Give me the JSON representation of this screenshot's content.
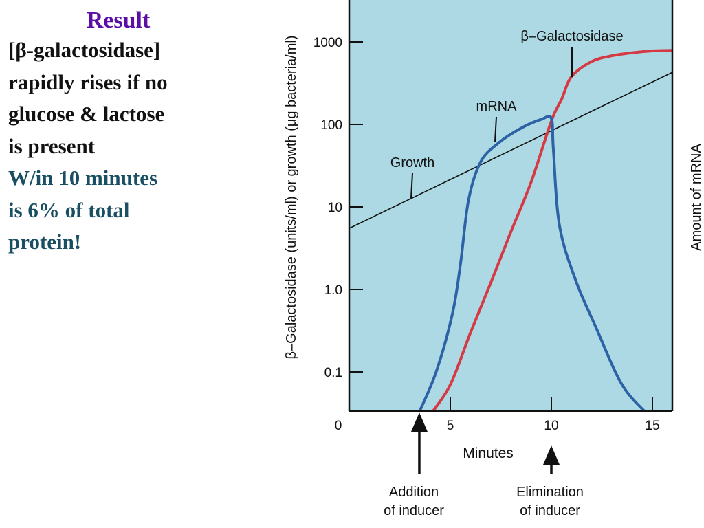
{
  "slide": {
    "title": "Result",
    "lines": [
      {
        "text": "[β-galactosidase]",
        "color": "#111111"
      },
      {
        "text": "rapidly rises if no",
        "color": "#111111"
      },
      {
        "text": "glucose & lactose",
        "color": "#111111"
      },
      {
        "text": "is present",
        "color": "#111111"
      },
      {
        "text": "W/in 10 minutes",
        "color": "#1a4f63"
      },
      {
        "text": "is 6% of total",
        "color": "#1a4f63"
      },
      {
        "text": "protein!",
        "color": "#1a4f63"
      }
    ]
  },
  "chart_data": {
    "type": "line",
    "xlabel": "Minutes",
    "ylabel": "β–Galactosidase (units/ml) or growth (μg bacteria/ml)",
    "y2label": "Amount of mRNA",
    "x_ticks": [
      "0",
      "5",
      "10",
      "15"
    ],
    "y_ticks": [
      "0.1",
      "1.0",
      "10",
      "100",
      "1000"
    ],
    "y_scale": "log",
    "xlim": [
      0,
      16
    ],
    "ylim": [
      0.03,
      3000
    ],
    "background_color": "#acd9e3",
    "series": [
      {
        "name": "Growth",
        "color": "#111111",
        "points": [
          [
            0,
            5.5
          ],
          [
            16,
            430
          ]
        ]
      },
      {
        "name": "β–Galactosidase",
        "color": "#d53a44",
        "points": [
          [
            4,
            0.03
          ],
          [
            5,
            0.07
          ],
          [
            6,
            0.3
          ],
          [
            7,
            1.2
          ],
          [
            8,
            5
          ],
          [
            9,
            20
          ],
          [
            10,
            110
          ],
          [
            10.5,
            200
          ],
          [
            11,
            380
          ],
          [
            12,
            580
          ],
          [
            13,
            680
          ],
          [
            14,
            740
          ],
          [
            15,
            780
          ],
          [
            16,
            790
          ]
        ]
      },
      {
        "name": "mRNA",
        "color": "#2e62a6",
        "points": [
          [
            3.4,
            0.03
          ],
          [
            4.3,
            0.1
          ],
          [
            5.1,
            0.5
          ],
          [
            5.5,
            2
          ],
          [
            5.9,
            12
          ],
          [
            6.5,
            35
          ],
          [
            7.4,
            60
          ],
          [
            8.5,
            90
          ],
          [
            9.5,
            115
          ],
          [
            10.0,
            118
          ],
          [
            10.1,
            50
          ],
          [
            10.4,
            6
          ],
          [
            11.2,
            1.3
          ],
          [
            12.2,
            0.35
          ],
          [
            13.5,
            0.07
          ],
          [
            14.8,
            0.03
          ]
        ]
      }
    ],
    "annotations": [
      {
        "label": "Addition",
        "label2": "of inducer",
        "x": 3.4,
        "kind": "arrow"
      },
      {
        "label": "Elimination",
        "label2": "of inducer",
        "x": 10,
        "kind": "arrow"
      }
    ]
  }
}
